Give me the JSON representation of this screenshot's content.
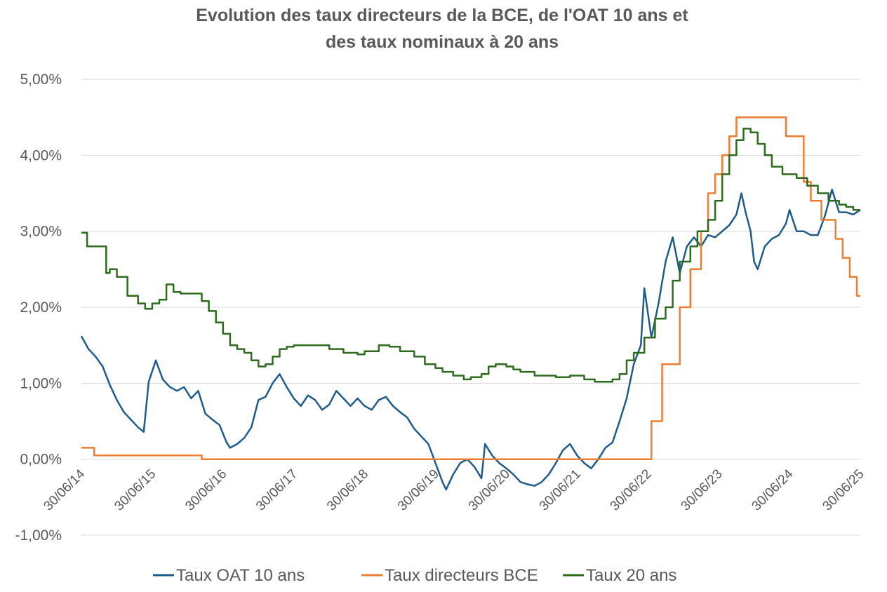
{
  "chart_data": {
    "type": "line",
    "title": "Evolution des taux directeurs de la BCE, de l'OAT 10 ans et des taux nominaux à 20 ans",
    "title_lines": [
      "Evolution des taux directeurs de la BCE, de l'OAT 10 ans et",
      "des taux nominaux à 20 ans"
    ],
    "xlabel": "",
    "ylabel": "",
    "ylim": [
      -1.0,
      5.0
    ],
    "y_ticks": [
      {
        "value": 5.0,
        "label": "5,00%"
      },
      {
        "value": 4.0,
        "label": "4,00%"
      },
      {
        "value": 3.0,
        "label": "3,00%"
      },
      {
        "value": 2.0,
        "label": "2,00%"
      },
      {
        "value": 1.0,
        "label": "1,00%"
      },
      {
        "value": 0.0,
        "label": "0,00%"
      },
      {
        "value": -1.0,
        "label": "-1,00%"
      }
    ],
    "xlim": [
      2014.5,
      2025.5
    ],
    "x_ticks": [
      {
        "value": 2014.5,
        "label": "30/06/14"
      },
      {
        "value": 2015.5,
        "label": "30/06/15"
      },
      {
        "value": 2016.5,
        "label": "30/06/16"
      },
      {
        "value": 2017.5,
        "label": "30/06/17"
      },
      {
        "value": 2018.5,
        "label": "30/06/18"
      },
      {
        "value": 2019.5,
        "label": "30/06/19"
      },
      {
        "value": 2020.5,
        "label": "30/06/20"
      },
      {
        "value": 2021.5,
        "label": "30/06/21"
      },
      {
        "value": 2022.5,
        "label": "30/06/22"
      },
      {
        "value": 2023.5,
        "label": "30/06/23"
      },
      {
        "value": 2024.5,
        "label": "30/06/24"
      },
      {
        "value": 2025.5,
        "label": "30/06/25"
      }
    ],
    "grid": "horizontal",
    "legend_position": "bottom",
    "series": [
      {
        "name": "Taux OAT 10 ans",
        "color": "#1f5c8a",
        "step": false,
        "points": [
          [
            2014.5,
            1.62
          ],
          [
            2014.6,
            1.45
          ],
          [
            2014.7,
            1.35
          ],
          [
            2014.8,
            1.22
          ],
          [
            2014.9,
            0.98
          ],
          [
            2015.0,
            0.78
          ],
          [
            2015.1,
            0.62
          ],
          [
            2015.2,
            0.52
          ],
          [
            2015.3,
            0.42
          ],
          [
            2015.38,
            0.36
          ],
          [
            2015.45,
            1.02
          ],
          [
            2015.55,
            1.3
          ],
          [
            2015.65,
            1.05
          ],
          [
            2015.75,
            0.95
          ],
          [
            2015.85,
            0.9
          ],
          [
            2015.95,
            0.95
          ],
          [
            2016.05,
            0.8
          ],
          [
            2016.15,
            0.9
          ],
          [
            2016.25,
            0.6
          ],
          [
            2016.35,
            0.52
          ],
          [
            2016.45,
            0.45
          ],
          [
            2016.55,
            0.22
          ],
          [
            2016.6,
            0.15
          ],
          [
            2016.7,
            0.2
          ],
          [
            2016.8,
            0.28
          ],
          [
            2016.9,
            0.42
          ],
          [
            2017.0,
            0.78
          ],
          [
            2017.1,
            0.82
          ],
          [
            2017.2,
            1.0
          ],
          [
            2017.3,
            1.12
          ],
          [
            2017.4,
            0.95
          ],
          [
            2017.5,
            0.8
          ],
          [
            2017.6,
            0.7
          ],
          [
            2017.7,
            0.84
          ],
          [
            2017.8,
            0.78
          ],
          [
            2017.9,
            0.65
          ],
          [
            2018.0,
            0.72
          ],
          [
            2018.1,
            0.9
          ],
          [
            2018.2,
            0.8
          ],
          [
            2018.3,
            0.7
          ],
          [
            2018.4,
            0.8
          ],
          [
            2018.5,
            0.7
          ],
          [
            2018.6,
            0.65
          ],
          [
            2018.7,
            0.78
          ],
          [
            2018.8,
            0.82
          ],
          [
            2018.9,
            0.7
          ],
          [
            2019.0,
            0.62
          ],
          [
            2019.1,
            0.55
          ],
          [
            2019.2,
            0.4
          ],
          [
            2019.3,
            0.3
          ],
          [
            2019.4,
            0.2
          ],
          [
            2019.5,
            -0.05
          ],
          [
            2019.6,
            -0.3
          ],
          [
            2019.65,
            -0.4
          ],
          [
            2019.75,
            -0.2
          ],
          [
            2019.85,
            -0.05
          ],
          [
            2019.95,
            0.0
          ],
          [
            2020.05,
            -0.1
          ],
          [
            2020.15,
            -0.25
          ],
          [
            2020.2,
            0.2
          ],
          [
            2020.3,
            0.05
          ],
          [
            2020.4,
            -0.05
          ],
          [
            2020.5,
            -0.12
          ],
          [
            2020.6,
            -0.2
          ],
          [
            2020.7,
            -0.3
          ],
          [
            2020.8,
            -0.33
          ],
          [
            2020.9,
            -0.35
          ],
          [
            2021.0,
            -0.3
          ],
          [
            2021.1,
            -0.2
          ],
          [
            2021.2,
            -0.05
          ],
          [
            2021.3,
            0.12
          ],
          [
            2021.4,
            0.2
          ],
          [
            2021.5,
            0.05
          ],
          [
            2021.6,
            -0.05
          ],
          [
            2021.7,
            -0.12
          ],
          [
            2021.8,
            0.0
          ],
          [
            2021.9,
            0.15
          ],
          [
            2022.0,
            0.22
          ],
          [
            2022.1,
            0.5
          ],
          [
            2022.2,
            0.8
          ],
          [
            2022.3,
            1.25
          ],
          [
            2022.4,
            1.5
          ],
          [
            2022.45,
            2.25
          ],
          [
            2022.55,
            1.6
          ],
          [
            2022.65,
            2.05
          ],
          [
            2022.75,
            2.6
          ],
          [
            2022.85,
            2.92
          ],
          [
            2022.95,
            2.45
          ],
          [
            2023.05,
            2.8
          ],
          [
            2023.15,
            2.92
          ],
          [
            2023.25,
            2.8
          ],
          [
            2023.35,
            2.95
          ],
          [
            2023.45,
            2.92
          ],
          [
            2023.55,
            3.0
          ],
          [
            2023.65,
            3.08
          ],
          [
            2023.75,
            3.22
          ],
          [
            2023.82,
            3.5
          ],
          [
            2023.88,
            3.25
          ],
          [
            2023.95,
            3.0
          ],
          [
            2024.0,
            2.6
          ],
          [
            2024.05,
            2.5
          ],
          [
            2024.15,
            2.8
          ],
          [
            2024.25,
            2.9
          ],
          [
            2024.35,
            2.95
          ],
          [
            2024.45,
            3.1
          ],
          [
            2024.5,
            3.28
          ],
          [
            2024.6,
            3.0
          ],
          [
            2024.7,
            3.0
          ],
          [
            2024.8,
            2.95
          ],
          [
            2024.9,
            2.95
          ],
          [
            2025.0,
            3.2
          ],
          [
            2025.1,
            3.55
          ],
          [
            2025.2,
            3.25
          ],
          [
            2025.3,
            3.25
          ],
          [
            2025.4,
            3.22
          ],
          [
            2025.5,
            3.28
          ]
        ]
      },
      {
        "name": "Taux directeurs BCE",
        "color": "#ed7d31",
        "step": true,
        "points": [
          [
            2014.5,
            0.15
          ],
          [
            2014.68,
            0.05
          ],
          [
            2016.2,
            0.0
          ],
          [
            2022.55,
            0.5
          ],
          [
            2022.7,
            1.25
          ],
          [
            2022.95,
            2.0
          ],
          [
            2023.1,
            2.5
          ],
          [
            2023.25,
            3.0
          ],
          [
            2023.35,
            3.5
          ],
          [
            2023.45,
            3.75
          ],
          [
            2023.55,
            4.0
          ],
          [
            2023.65,
            4.25
          ],
          [
            2023.75,
            4.5
          ],
          [
            2024.45,
            4.25
          ],
          [
            2024.7,
            3.65
          ],
          [
            2024.8,
            3.4
          ],
          [
            2024.95,
            3.15
          ],
          [
            2025.15,
            2.9
          ],
          [
            2025.25,
            2.65
          ],
          [
            2025.35,
            2.4
          ],
          [
            2025.45,
            2.15
          ],
          [
            2025.5,
            2.15
          ]
        ]
      },
      {
        "name": "Taux 20 ans",
        "color": "#2e6b1e",
        "step": true,
        "points": [
          [
            2014.5,
            2.98
          ],
          [
            2014.58,
            2.8
          ],
          [
            2014.85,
            2.45
          ],
          [
            2014.9,
            2.5
          ],
          [
            2015.0,
            2.4
          ],
          [
            2015.15,
            2.15
          ],
          [
            2015.3,
            2.05
          ],
          [
            2015.4,
            1.98
          ],
          [
            2015.5,
            2.05
          ],
          [
            2015.6,
            2.1
          ],
          [
            2015.7,
            2.3
          ],
          [
            2015.8,
            2.2
          ],
          [
            2015.9,
            2.18
          ],
          [
            2016.2,
            2.08
          ],
          [
            2016.3,
            1.95
          ],
          [
            2016.4,
            1.8
          ],
          [
            2016.5,
            1.65
          ],
          [
            2016.6,
            1.5
          ],
          [
            2016.7,
            1.45
          ],
          [
            2016.8,
            1.4
          ],
          [
            2016.9,
            1.3
          ],
          [
            2017.0,
            1.22
          ],
          [
            2017.1,
            1.25
          ],
          [
            2017.2,
            1.35
          ],
          [
            2017.3,
            1.45
          ],
          [
            2017.4,
            1.48
          ],
          [
            2017.5,
            1.5
          ],
          [
            2018.0,
            1.45
          ],
          [
            2018.2,
            1.4
          ],
          [
            2018.4,
            1.38
          ],
          [
            2018.5,
            1.42
          ],
          [
            2018.7,
            1.5
          ],
          [
            2018.85,
            1.48
          ],
          [
            2019.0,
            1.42
          ],
          [
            2019.2,
            1.35
          ],
          [
            2019.35,
            1.25
          ],
          [
            2019.5,
            1.2
          ],
          [
            2019.6,
            1.15
          ],
          [
            2019.75,
            1.1
          ],
          [
            2019.9,
            1.05
          ],
          [
            2020.0,
            1.08
          ],
          [
            2020.15,
            1.12
          ],
          [
            2020.25,
            1.22
          ],
          [
            2020.35,
            1.25
          ],
          [
            2020.5,
            1.22
          ],
          [
            2020.6,
            1.18
          ],
          [
            2020.7,
            1.15
          ],
          [
            2020.9,
            1.1
          ],
          [
            2021.2,
            1.08
          ],
          [
            2021.4,
            1.1
          ],
          [
            2021.6,
            1.05
          ],
          [
            2021.75,
            1.02
          ],
          [
            2022.0,
            1.05
          ],
          [
            2022.1,
            1.12
          ],
          [
            2022.2,
            1.3
          ],
          [
            2022.3,
            1.4
          ],
          [
            2022.45,
            1.6
          ],
          [
            2022.6,
            1.85
          ],
          [
            2022.75,
            2.0
          ],
          [
            2022.85,
            2.35
          ],
          [
            2022.95,
            2.6
          ],
          [
            2023.1,
            2.8
          ],
          [
            2023.2,
            3.0
          ],
          [
            2023.35,
            3.15
          ],
          [
            2023.45,
            3.4
          ],
          [
            2023.55,
            3.75
          ],
          [
            2023.65,
            4.0
          ],
          [
            2023.75,
            4.2
          ],
          [
            2023.85,
            4.35
          ],
          [
            2023.95,
            4.3
          ],
          [
            2024.05,
            4.15
          ],
          [
            2024.15,
            4.0
          ],
          [
            2024.25,
            3.85
          ],
          [
            2024.4,
            3.75
          ],
          [
            2024.6,
            3.7
          ],
          [
            2024.75,
            3.6
          ],
          [
            2024.9,
            3.5
          ],
          [
            2025.05,
            3.4
          ],
          [
            2025.2,
            3.35
          ],
          [
            2025.3,
            3.32
          ],
          [
            2025.4,
            3.28
          ],
          [
            2025.5,
            3.28
          ]
        ]
      }
    ]
  }
}
